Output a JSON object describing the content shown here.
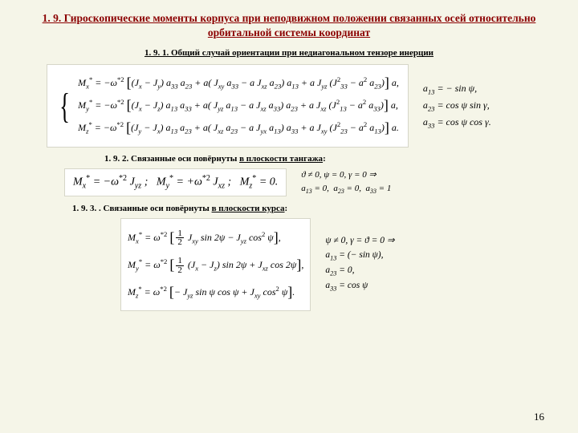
{
  "background_color": "#f5f5e8",
  "page_number": "16",
  "title": "1. 9.  Гироскопические моменты корпуса при неподвижном положении связанных осей относительно орбитальной системы координат",
  "section191": {
    "heading": "1. 9. 1. Общий случай ориентации при недиагональном тензоре инерции",
    "eq1": "M<sub>x</sub><sup>*</sup> = −ω<sup>*2</sup> <span class='bracket-l'>[</span>(J<sub>x</sub> − J<sub>y</sub>) a<sub>33</sub> a<sub>23</sub> + a( J<sub>xy</sub> a<sub>33</sub> − a J<sub>xz</sub> a<sub>23</sub>) a<sub>13</sub> + a J<sub>yz</sub> (J<sup>2</sup><sub>33</sub> − a<sup>2</sup> a<sub>23</sub>)<span class='bracket-r'>]</span> a,",
    "eq2": "M<sub>y</sub><sup>*</sup> = −ω<sup>*2</sup> <span class='bracket-l'>[</span>(J<sub>x</sub> − J<sub>z</sub>) a<sub>13</sub> a<sub>33</sub> + a( J<sub>yz</sub> a<sub>13</sub> − a J<sub>xz</sub> a<sub>33</sub>) a<sub>23</sub> + a J<sub>xz</sub> (J<sup>2</sup><sub>13</sub> − a<sup>2</sup> a<sub>33</sub>)<span class='bracket-r'>]</span> a,",
    "eq3": "M<sub>z</sub><sup>*</sup> = −ω<sup>*2</sup> <span class='bracket-l'>[</span>(J<sub>y</sub> − J<sub>x</sub>) a<sub>13</sub> a<sub>23</sub> + a( J<sub>xz</sub> a<sub>23</sub> − a J<sub>yx</sub> a<sub>13</sub>) a<sub>33</sub> + a J<sub>xy</sub> (J<sup>2</sup><sub>23</sub> − a<sup>2</sup> a<sub>13</sub>)<span class='bracket-r'>]</span> a.",
    "side1": "a<sub>13</sub> = − sin ψ,",
    "side2": "a<sub>23</sub> = cos ψ sin γ,",
    "side3": "a<sub>33</sub> = cos ψ cos γ."
  },
  "section192": {
    "heading_prefix": "1. 9. 2. Связанные оси повёрнуты ",
    "heading_ul": "в плоскости тангажа",
    "eq": "M<sub>x</sub><sup>*</sup> = −ω<sup>*2</sup> J<sub>yz</sub> ;&nbsp;&nbsp; M<sub>y</sub><sup>*</sup> = +ω<sup>*2</sup> J<sub>xz</sub> ;&nbsp;&nbsp; M<sub>z</sub><sup>*</sup> = 0.",
    "side1": "ϑ ≠ 0,  ψ = 0,  γ = 0 ⇒",
    "side2": "a<sub>13</sub> = 0,&nbsp; a<sub>23</sub> = 0,&nbsp; a<sub>33</sub> = 1"
  },
  "section193": {
    "heading_prefix": "1. 9. 3. . Связанные оси повёрнуты ",
    "heading_ul": "в плоскости курса",
    "eq1": "M<sub>x</sub><sup>*</sup> = ω<sup>*2</sup> <span class='bracket-l'>[</span><span class='frac'><span class='n'>1</span><span class='d'>2</span></span> J<sub>xy</sub> sin 2ψ − J<sub>yz</sub> cos<sup>2</sup> ψ<span class='bracket-r'>]</span>,",
    "eq2": "M<sub>y</sub><sup>*</sup> = ω<sup>*2</sup> <span class='bracket-l'>[</span><span class='frac'><span class='n'>1</span><span class='d'>2</span></span> (J<sub>x</sub> − J<sub>z</sub>) sin 2ψ + J<sub>xz</sub> cos 2ψ<span class='bracket-r'>]</span>,",
    "eq3": "M<sub>z</sub><sup>*</sup> = ω<sup>*2</sup> <span class='bracket-l'>[</span>− J<sub>yz</sub> sin ψ cos ψ + J<sub>xy</sub> cos<sup>2</sup> ψ<span class='bracket-r'>]</span>.",
    "side0": "ψ ≠ 0, γ = ϑ = 0 ⇒",
    "side1": "a<sub>13</sub> = (− sin ψ),",
    "side2": "a<sub>23</sub> = 0,",
    "side3": "a<sub>33</sub> = cos ψ"
  }
}
